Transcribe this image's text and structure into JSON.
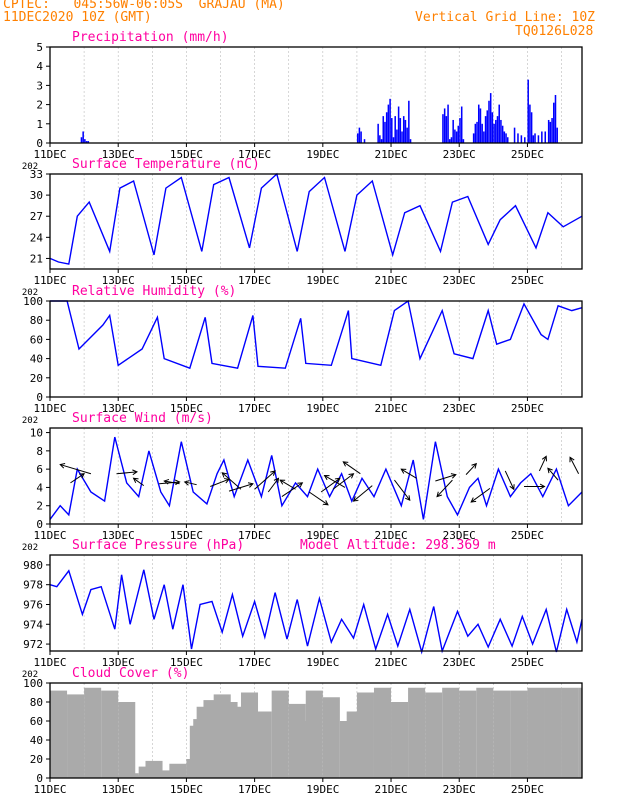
{
  "header": {
    "line1": "CPTEC:   045:56W-06:05S  GRAJAU (MA)",
    "line2": "11DEC2020 10Z (GMT)",
    "right1": "Vertical Grid Line: 10Z",
    "right2": "TQ0126L028",
    "model_altitude": "Model Altitude: 298.369 m",
    "year_stub": "202",
    "colors": {
      "header": "#ff8000",
      "title": "#ff00a0",
      "series": "#0000ff",
      "cloud": "#aaaaaa"
    }
  },
  "x_ticks": [
    "11DEC",
    "13DEC",
    "15DEC",
    "17DEC",
    "19DEC",
    "21DEC",
    "23DEC",
    "25DEC"
  ],
  "chart_data": [
    {
      "type": "bar",
      "title": "Precipitation (mm/h)",
      "ylim": [
        0,
        5
      ],
      "yticks": [
        "0",
        "1",
        "2",
        "3",
        "4",
        "5"
      ],
      "x": [
        0.9,
        0.95,
        1.0,
        1.05,
        1.1,
        9.0,
        9.05,
        9.1,
        9.2,
        9.6,
        9.65,
        9.7,
        9.75,
        9.8,
        9.85,
        9.9,
        9.95,
        10.0,
        10.05,
        10.1,
        10.15,
        10.2,
        10.25,
        10.3,
        10.35,
        10.4,
        10.45,
        10.5,
        10.55,
        11.5,
        11.55,
        11.6,
        11.65,
        11.7,
        11.75,
        11.8,
        11.85,
        11.9,
        11.95,
        12.0,
        12.05,
        12.1,
        12.4,
        12.45,
        12.5,
        12.55,
        12.6,
        12.65,
        12.7,
        12.75,
        12.8,
        12.85,
        12.9,
        12.95,
        13.0,
        13.05,
        13.1,
        13.15,
        13.2,
        13.25,
        13.3,
        13.35,
        13.4,
        13.6,
        13.7,
        13.8,
        13.9,
        14.0,
        14.05,
        14.1,
        14.15,
        14.2,
        14.3,
        14.4,
        14.5,
        14.6,
        14.65,
        14.7,
        14.75,
        14.8,
        14.85
      ],
      "values": [
        0.3,
        0.6,
        0.2,
        0.1,
        0.1,
        0.5,
        0.8,
        0.6,
        0.2,
        1.0,
        0.4,
        0.2,
        1.4,
        1.1,
        1.6,
        2.0,
        2.3,
        1.3,
        0.3,
        1.4,
        0.7,
        1.9,
        1.3,
        0.6,
        1.4,
        1.2,
        0.8,
        2.2,
        0.2,
        1.5,
        1.8,
        1.4,
        2.0,
        0.2,
        0.3,
        1.2,
        0.7,
        0.6,
        0.9,
        1.3,
        1.9,
        0.2,
        0.5,
        1.0,
        1.1,
        2.0,
        1.8,
        1.0,
        0.6,
        1.4,
        1.7,
        2.2,
        2.6,
        1.6,
        1.0,
        1.2,
        1.4,
        2.0,
        1.2,
        0.9,
        0.6,
        0.5,
        0.3,
        0.8,
        0.5,
        0.4,
        0.3,
        3.3,
        2.0,
        1.6,
        0.4,
        0.5,
        0.4,
        0.6,
        0.6,
        1.2,
        1.1,
        1.3,
        2.1,
        2.5,
        0.8
      ]
    },
    {
      "type": "line",
      "title": "Surface Temperature (nC)",
      "ylim": [
        19.5,
        33
      ],
      "yticks": [
        "21",
        "24",
        "27",
        "30",
        "33"
      ],
      "x": [
        0,
        0.25,
        0.55,
        0.8,
        1.15,
        1.75,
        2.05,
        2.45,
        3.05,
        3.4,
        3.85,
        4.45,
        4.8,
        5.25,
        5.85,
        6.2,
        6.65,
        7.25,
        7.6,
        8.05,
        8.65,
        9.0,
        9.45,
        10.05,
        10.4,
        10.85,
        11.45,
        11.8,
        12.25,
        12.85,
        13.2,
        13.65,
        14.25,
        14.6,
        15.05,
        15.6
      ],
      "values": [
        21,
        20.5,
        20.2,
        27,
        29,
        22,
        31,
        32,
        21.5,
        31,
        32.5,
        22,
        31.5,
        32.5,
        22.5,
        31,
        33,
        22,
        30.5,
        32.5,
        22,
        30,
        32,
        21.5,
        27.5,
        28.5,
        22,
        29,
        29.8,
        23,
        26.5,
        28.5,
        22.5,
        27.5,
        25.5,
        27
      ]
    },
    {
      "type": "line",
      "title": "Relative Humidity (%)",
      "ylim": [
        0,
        100
      ],
      "yticks": [
        "0",
        "20",
        "40",
        "60",
        "80",
        "100"
      ],
      "x": [
        0,
        0.5,
        0.85,
        1.55,
        1.75,
        2.0,
        2.7,
        3.15,
        3.35,
        4.1,
        4.55,
        4.75,
        5.5,
        5.95,
        6.1,
        6.9,
        7.35,
        7.5,
        8.25,
        8.75,
        8.85,
        9.7,
        10.1,
        10.5,
        10.85,
        11.5,
        11.85,
        12.4,
        12.85,
        13.1,
        13.5,
        13.9,
        14.4,
        14.6,
        14.9,
        15.3,
        15.6
      ],
      "values": [
        100,
        100,
        50,
        75,
        85,
        33,
        50,
        83,
        40,
        30,
        83,
        35,
        30,
        85,
        32,
        30,
        82,
        35,
        33,
        90,
        40,
        33,
        90,
        100,
        40,
        90,
        45,
        40,
        90,
        55,
        60,
        97,
        65,
        60,
        95,
        90,
        93
      ]
    },
    {
      "type": "line",
      "title": "Surface Wind (m/s)",
      "ylim": [
        0,
        10.5
      ],
      "yticks": [
        "0",
        "2",
        "4",
        "6",
        "8",
        "10"
      ],
      "x": [
        0,
        0.3,
        0.55,
        0.8,
        1.2,
        1.6,
        1.9,
        2.25,
        2.6,
        2.9,
        3.25,
        3.5,
        3.85,
        4.2,
        4.6,
        4.9,
        5.1,
        5.4,
        5.8,
        6.2,
        6.5,
        6.8,
        7.2,
        7.55,
        7.85,
        8.2,
        8.55,
        8.85,
        9.15,
        9.5,
        9.85,
        10.3,
        10.65,
        10.95,
        11.3,
        11.65,
        11.95,
        12.3,
        12.55,
        12.8,
        13.15,
        13.5,
        13.8,
        14.1,
        14.45,
        14.85,
        15.2,
        15.6
      ],
      "values": [
        0.5,
        2,
        1,
        6,
        3.5,
        2.5,
        9.5,
        4.5,
        3,
        8,
        3.5,
        2,
        9,
        3.5,
        2.2,
        5.5,
        7,
        3,
        7,
        3,
        7.5,
        2,
        4.5,
        3,
        6,
        3,
        5.5,
        2.5,
        5,
        3,
        6,
        2,
        7,
        0.5,
        9,
        3,
        1,
        4,
        5,
        2,
        6,
        3,
        4.5,
        5.5,
        3,
        6,
        2,
        3.5
      ],
      "vectors_x": [
        0.6,
        1.2,
        1.95,
        2.75,
        3.2,
        3.8,
        4.3,
        4.7,
        5.25,
        5.6,
        6.0,
        6.4,
        6.8,
        7.2,
        7.6,
        7.95,
        8.3,
        8.65,
        9.1,
        9.45,
        10.1,
        10.75,
        11.3,
        11.8,
        12.2,
        12.9,
        13.35,
        13.9,
        14.35,
        14.9,
        15.5
      ],
      "vectors_y": [
        4.5,
        5.5,
        5.5,
        4.2,
        4.4,
        4.4,
        4.3,
        4.1,
        3.6,
        3.8,
        3.8,
        3.5,
        3.0,
        3.8,
        3.5,
        3.5,
        3.8,
        4.0,
        5.5,
        4.2,
        4.8,
        5.0,
        4.7,
        4.8,
        5.4,
        3.9,
        5.8,
        4.1,
        5.8,
        4.8,
        5.5
      ],
      "vectors_dx": [
        0.4,
        -0.9,
        0.6,
        -0.3,
        0.6,
        -0.45,
        -0.35,
        0.55,
        0.7,
        -0.55,
        0.6,
        0.3,
        0.6,
        -0.45,
        0.55,
        0.55,
        0.6,
        -0.6,
        -0.5,
        -0.55,
        0.45,
        -0.45,
        0.6,
        -0.45,
        0.3,
        -0.55,
        0.25,
        0.6,
        0.2,
        -0.3,
        -0.25
      ],
      "vectors_dy": [
        1.0,
        1.0,
        0.2,
        0.8,
        0.2,
        0.3,
        0.3,
        0.8,
        0.8,
        1.8,
        2.0,
        1.5,
        1.5,
        1.0,
        -1.4,
        1.5,
        1.7,
        1.3,
        1.3,
        -1.7,
        -2.2,
        1.0,
        0.7,
        -1.8,
        1.2,
        -1.5,
        -2.0,
        0.0,
        1.6,
        1.3,
        1.8
      ]
    },
    {
      "type": "line",
      "title": "Surface Pressure (hPa)",
      "ylim": [
        971.3,
        981
      ],
      "yticks": [
        "972",
        "974",
        "976",
        "978",
        "980"
      ],
      "x": [
        0,
        0.2,
        0.55,
        0.95,
        1.2,
        1.5,
        1.9,
        2.1,
        2.35,
        2.75,
        3.05,
        3.35,
        3.6,
        3.9,
        4.15,
        4.4,
        4.75,
        5.05,
        5.35,
        5.65,
        6.0,
        6.3,
        6.6,
        6.95,
        7.25,
        7.55,
        7.9,
        8.25,
        8.55,
        8.9,
        9.2,
        9.55,
        9.9,
        10.2,
        10.55,
        10.9,
        11.25,
        11.5,
        11.95,
        12.25,
        12.55,
        12.85,
        13.2,
        13.55,
        13.85,
        14.15,
        14.55,
        14.85,
        15.15,
        15.45,
        15.6
      ],
      "values": [
        978,
        977.8,
        979.4,
        975,
        977.5,
        977.8,
        973.5,
        979,
        974,
        979.5,
        974.5,
        978,
        973.5,
        978,
        971.5,
        976,
        976.3,
        973.2,
        977,
        972.8,
        976.3,
        972.7,
        977.2,
        972.5,
        976.5,
        971.8,
        976.6,
        972.2,
        974.5,
        972.6,
        976,
        971.5,
        975,
        971.8,
        975.5,
        971.2,
        975.8,
        971.3,
        975.3,
        972.8,
        974,
        971.7,
        974.5,
        971.8,
        974.8,
        972,
        975.5,
        971.2,
        975.5,
        972.2,
        974.5
      ]
    },
    {
      "type": "bar",
      "title": "Cloud Cover (%)",
      "ylim": [
        0,
        100
      ],
      "yticks": [
        "0",
        "20",
        "40",
        "60",
        "80",
        "100"
      ],
      "x": [
        0,
        0.5,
        1.0,
        1.5,
        2.0,
        2.1,
        2.3,
        2.6,
        2.8,
        3.1,
        3.3,
        3.5,
        3.7,
        3.9,
        4.0,
        4.1,
        4.2,
        4.3,
        4.5,
        4.8,
        5.0,
        5.3,
        5.6,
        6.0,
        6.5,
        7.0,
        7.2,
        7.5,
        8.0,
        8.5,
        8.7,
        9.0,
        9.5,
        10.0,
        10.5,
        11.0,
        11.5,
        12.0,
        12.5,
        13.0,
        13.5,
        14.0,
        14.5,
        15.0,
        15.5
      ],
      "values": [
        92,
        88,
        95,
        92,
        80,
        5,
        3,
        12,
        18,
        8,
        4,
        15,
        3,
        2,
        20,
        55,
        62,
        75,
        82,
        88,
        80,
        75,
        90,
        70,
        92,
        78,
        60,
        92,
        85,
        60,
        70,
        90,
        95,
        80,
        95,
        90,
        95,
        92,
        95,
        92,
        92,
        95,
        95,
        95,
        95
      ],
      "bar_width": 0.5
    }
  ]
}
